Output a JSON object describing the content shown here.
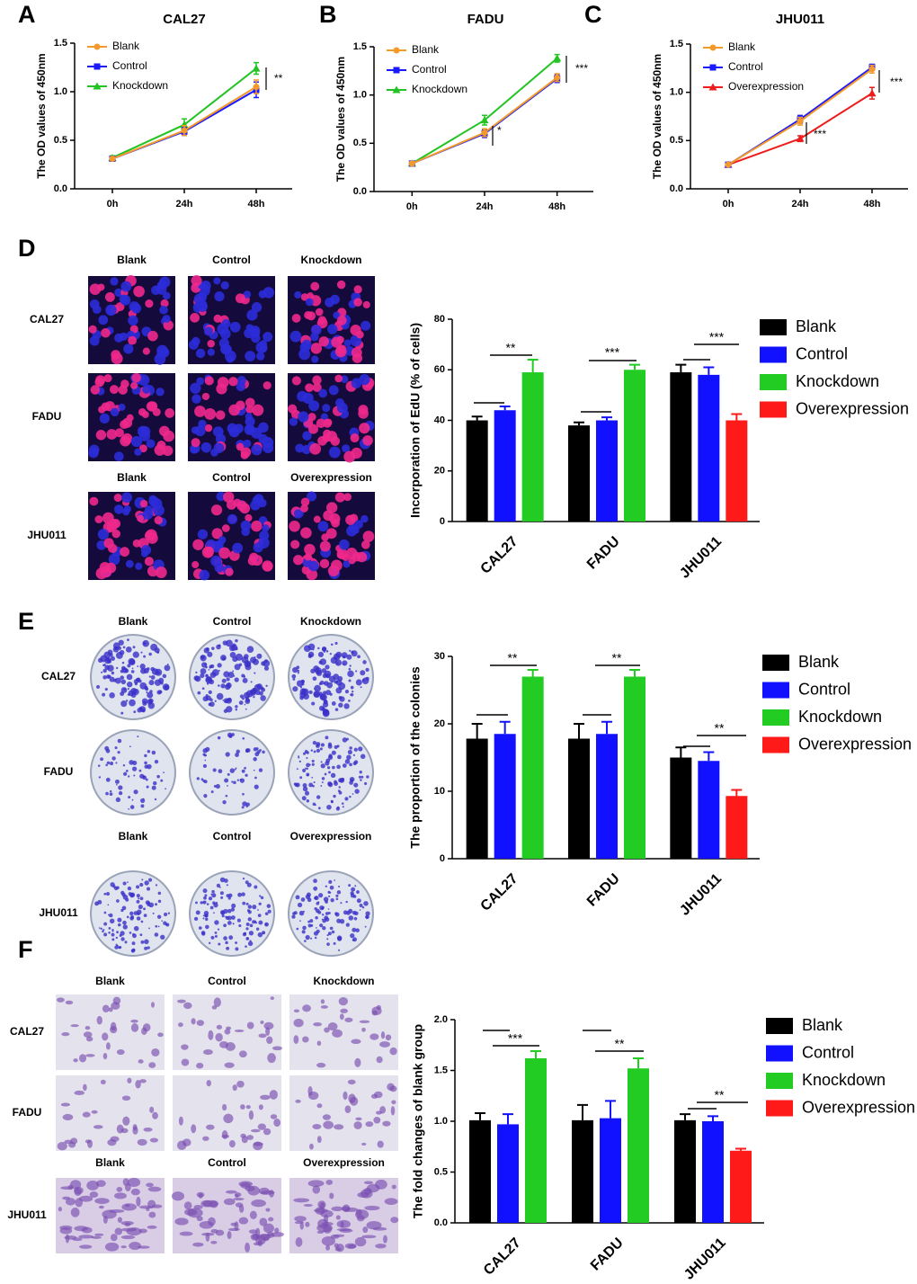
{
  "figure": {
    "panels": [
      "A",
      "B",
      "C",
      "D",
      "E",
      "F"
    ],
    "image_grids": [
      {
        "headers": [
          [
            "Blank",
            "Control",
            "Knockdown"
          ],
          [
            "Blank",
            "Control",
            "Overexpression"
          ]
        ],
        "rows": [
          "CAL27",
          "FADU",
          "JHU011"
        ]
      },
      {
        "headers": [
          [
            "Blank",
            "Control",
            "Knockdown"
          ],
          [
            "Blank",
            "Control",
            "Overexpression"
          ]
        ],
        "rows": [
          "CAL27",
          "FADU",
          "JHU011"
        ]
      },
      {
        "headers": [
          [
            "Blank",
            "Control",
            "Knockdown"
          ],
          [
            "Blank",
            "Control",
            "Overexpression"
          ]
        ],
        "rows": [
          "CAL27",
          "FADU",
          "JHU011"
        ]
      }
    ]
  },
  "chart_data": [
    {
      "type": "line",
      "title": "CAL27",
      "y_label": "The OD values of 450nm",
      "categories": [
        "0h",
        "24h",
        "48h"
      ],
      "ylim": [
        0,
        1.5
      ],
      "yticks": [
        {
          "value": 0,
          "label": "0.0"
        },
        0.5,
        {
          "value": 1,
          "label": "1.0"
        },
        1.5
      ],
      "series": [
        {
          "name": "Blank",
          "color": "#f39a2b",
          "values": [
            0.31,
            0.6,
            1.05
          ],
          "errors": [
            0.02,
            0.05,
            0.07
          ]
        },
        {
          "name": "Control",
          "color": "#1a1aff",
          "values": [
            0.31,
            0.59,
            1.02
          ],
          "errors": [
            0.02,
            0.04,
            0.08
          ]
        },
        {
          "name": "Knockdown",
          "color": "#22c322",
          "values": [
            0.32,
            0.66,
            1.24
          ],
          "errors": [
            0.02,
            0.06,
            0.06
          ]
        }
      ],
      "annotations": [
        "**"
      ]
    },
    {
      "type": "line",
      "title": "FADU",
      "y_label": "The OD values of 450nm",
      "categories": [
        "0h",
        "24h",
        "48h"
      ],
      "ylim": [
        0,
        1.5
      ],
      "yticks": [
        {
          "value": 0,
          "label": "0.0"
        },
        0.5,
        {
          "value": 1,
          "label": "1.0"
        },
        1.5
      ],
      "series": [
        {
          "name": "Blank",
          "color": "#f39a2b",
          "values": [
            0.29,
            0.61,
            1.18
          ],
          "errors": [
            0.02,
            0.04,
            0.04
          ]
        },
        {
          "name": "Control",
          "color": "#1a1aff",
          "values": [
            0.29,
            0.6,
            1.17
          ],
          "errors": [
            0.02,
            0.04,
            0.04
          ]
        },
        {
          "name": "Knockdown",
          "color": "#22c322",
          "values": [
            0.29,
            0.74,
            1.38
          ],
          "errors": [
            0.02,
            0.05,
            0.04
          ]
        }
      ],
      "annotations": [
        "*",
        "***"
      ]
    },
    {
      "type": "line",
      "title": "JHU011",
      "y_label": "The OD values of 450nm",
      "categories": [
        "0h",
        "24h",
        "48h"
      ],
      "ylim": [
        0,
        1.5
      ],
      "yticks": [
        {
          "value": 0,
          "label": "0.0"
        },
        0.5,
        {
          "value": 1,
          "label": "1.0"
        },
        1.5
      ],
      "series": [
        {
          "name": "Blank",
          "color": "#f39a2b",
          "values": [
            0.25,
            0.7,
            1.24
          ],
          "errors": [
            0.01,
            0.04,
            0.04
          ]
        },
        {
          "name": "Control",
          "color": "#1a1aff",
          "values": [
            0.25,
            0.72,
            1.26
          ],
          "errors": [
            0.01,
            0.04,
            0.03
          ]
        },
        {
          "name": "Overexpression",
          "color": "#ee1c1c",
          "values": [
            0.25,
            0.52,
            0.99
          ],
          "errors": [
            0.01,
            0.03,
            0.06
          ]
        }
      ],
      "annotations": [
        "***",
        "***"
      ]
    },
    {
      "type": "bar",
      "y_label": "Incorporation of EdU (% of cells)",
      "categories": [
        "CAL27",
        "FADU",
        "JHU011"
      ],
      "ylim": [
        0,
        80
      ],
      "yticks": [
        0,
        20,
        40,
        60,
        80
      ],
      "series": [
        {
          "name": "Blank",
          "color": "#000000",
          "values": [
            40,
            38,
            59
          ],
          "errors": [
            1.5,
            1.2,
            3
          ]
        },
        {
          "name": "Control",
          "color": "#1111ff",
          "values": [
            44,
            40,
            58
          ],
          "errors": [
            1.5,
            1.2,
            3
          ]
        },
        {
          "name": "Knockdown",
          "color": "#22cc22",
          "values": [
            59,
            60,
            null
          ],
          "errors": [
            5,
            2,
            null
          ]
        },
        {
          "name": "Overexpression",
          "color": "#ff1a1a",
          "values": [
            null,
            null,
            40
          ],
          "errors": [
            null,
            null,
            2.5
          ]
        }
      ],
      "annotations": [
        "**",
        "***",
        "***"
      ]
    },
    {
      "type": "bar",
      "y_label": "The proportion of the colonies",
      "categories": [
        "CAL27",
        "FADU",
        "JHU011"
      ],
      "ylim": [
        0,
        30
      ],
      "yticks": [
        0,
        10,
        20,
        30
      ],
      "series": [
        {
          "name": "Blank",
          "color": "#000000",
          "values": [
            17.8,
            17.8,
            15
          ],
          "errors": [
            2.2,
            2.2,
            1.5
          ]
        },
        {
          "name": "Control",
          "color": "#1111ff",
          "values": [
            18.5,
            18.5,
            14.5
          ],
          "errors": [
            1.8,
            1.8,
            1.3
          ]
        },
        {
          "name": "Knockdown",
          "color": "#22cc22",
          "values": [
            27,
            27,
            null
          ],
          "errors": [
            1,
            1,
            null
          ]
        },
        {
          "name": "Overexpression",
          "color": "#ff1a1a",
          "values": [
            null,
            null,
            9.3
          ],
          "errors": [
            null,
            null,
            0.9
          ]
        }
      ],
      "annotations": [
        "**",
        "**",
        "**"
      ]
    },
    {
      "type": "bar",
      "y_label": "The fold changes of blank group",
      "categories": [
        "CAL27",
        "FADU",
        "JHU011"
      ],
      "ylim": [
        0,
        2
      ],
      "yticks": [
        {
          "value": 0,
          "label": "0.0"
        },
        0.5,
        {
          "value": 1,
          "label": "1.0"
        },
        1.5,
        {
          "value": 2,
          "label": "2.0"
        }
      ],
      "series": [
        {
          "name": "Blank",
          "color": "#000000",
          "values": [
            1.01,
            1.01,
            1.01
          ],
          "errors": [
            0.07,
            0.15,
            0.06
          ]
        },
        {
          "name": "Control",
          "color": "#1111ff",
          "values": [
            0.97,
            1.03,
            1.0
          ],
          "errors": [
            0.1,
            0.17,
            0.05
          ]
        },
        {
          "name": "Knockdown",
          "color": "#22cc22",
          "values": [
            1.62,
            1.52,
            null
          ],
          "errors": [
            0.07,
            0.1,
            null
          ]
        },
        {
          "name": "Overexpression",
          "color": "#ff1a1a",
          "values": [
            null,
            null,
            0.71
          ],
          "errors": [
            null,
            null,
            0.02
          ]
        }
      ],
      "annotations": [
        "***",
        "**",
        "**"
      ]
    }
  ]
}
